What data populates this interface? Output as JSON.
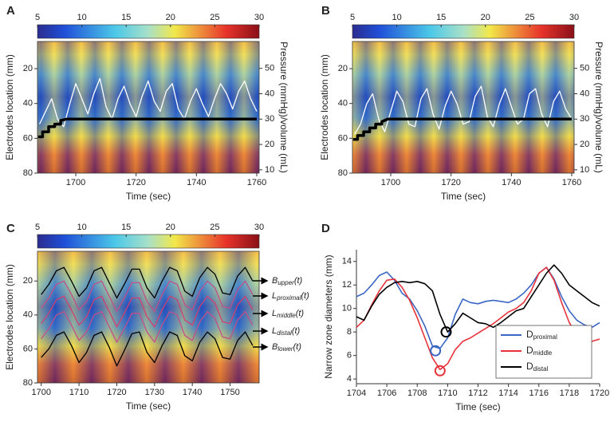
{
  "chart_data": [
    {
      "type": "heatmap",
      "label": "A",
      "colorbar": {
        "clim": [
          5,
          30
        ],
        "ticks": [
          5,
          10,
          15,
          20,
          25,
          30
        ]
      },
      "xlabel": "Time (sec)",
      "ylabel": "Electrodes location (mm)",
      "y2label": "Pressure (mmHg)/volume (mL)",
      "xlim": [
        1687.3,
        1760.8
      ],
      "xticks": [
        1700,
        1720,
        1740,
        1760
      ],
      "ylim": [
        4.4,
        80
      ],
      "invert_y": true,
      "yticks": [
        20,
        40,
        60,
        80
      ],
      "y2lim": [
        8.7,
        60.6
      ],
      "y2ticks": [
        10,
        20,
        30,
        40,
        50
      ],
      "series": [
        {
          "color": "#ffffff",
          "axis": "y2",
          "x": [
            1688,
            1690,
            1692,
            1694,
            1696,
            1698,
            1700,
            1702,
            1704,
            1706,
            1708,
            1710,
            1712,
            1714,
            1716,
            1718,
            1720,
            1722,
            1724,
            1726,
            1728,
            1730,
            1732,
            1734,
            1736,
            1738,
            1740,
            1742,
            1744,
            1746,
            1748,
            1750,
            1752,
            1754,
            1756,
            1758,
            1760
          ],
          "values": [
            28,
            33,
            38,
            30,
            27,
            36,
            44,
            38,
            32,
            40,
            46,
            35,
            30,
            38,
            43,
            36,
            31,
            39,
            45,
            37,
            33,
            41,
            44,
            34,
            30,
            37,
            42,
            36,
            31,
            38,
            44,
            40,
            34,
            41,
            45,
            38,
            33
          ]
        },
        {
          "color": "#000000",
          "axis": "y2",
          "x": [
            1687.5,
            1689,
            1689,
            1691,
            1691,
            1693,
            1693,
            1695,
            1695,
            1697,
            1760
          ],
          "values": [
            23,
            23,
            25,
            25,
            27,
            27,
            28,
            28,
            29.5,
            30,
            30
          ]
        }
      ]
    },
    {
      "type": "heatmap",
      "label": "B",
      "colorbar": {
        "clim": [
          5,
          30
        ],
        "ticks": [
          5,
          10,
          15,
          20,
          25,
          30
        ]
      },
      "xlabel": "Time (sec)",
      "ylabel": "Electrodes location (mm)",
      "y2label": "Pressure (mmHg)/volume (mL)",
      "xlim": [
        1687.3,
        1760.8
      ],
      "xticks": [
        1700,
        1720,
        1740,
        1760
      ],
      "ylim": [
        4.4,
        80
      ],
      "invert_y": true,
      "yticks": [
        20,
        40,
        60,
        80
      ],
      "y2lim": [
        8.7,
        60.6
      ],
      "y2ticks": [
        10,
        20,
        30,
        40,
        50
      ],
      "series": [
        {
          "color": "#ffffff",
          "axis": "y2",
          "x": [
            1688,
            1690,
            1692,
            1694,
            1696,
            1698,
            1700,
            1702,
            1704,
            1706,
            1708,
            1710,
            1712,
            1714,
            1716,
            1718,
            1720,
            1722,
            1724,
            1726,
            1728,
            1730,
            1732,
            1734,
            1736,
            1738,
            1740,
            1742,
            1744,
            1746,
            1748,
            1750,
            1752,
            1754,
            1756,
            1758,
            1760
          ],
          "values": [
            24,
            28,
            36,
            40,
            30,
            25,
            33,
            41,
            37,
            28,
            27,
            38,
            42,
            32,
            26,
            35,
            41,
            36,
            28,
            29,
            39,
            43,
            31,
            27,
            36,
            42,
            35,
            28,
            30,
            40,
            42,
            32,
            27,
            37,
            41,
            34,
            30
          ]
        },
        {
          "color": "#000000",
          "axis": "y2",
          "x": [
            1687.5,
            1689,
            1689,
            1691,
            1691,
            1693,
            1693,
            1695,
            1695,
            1697,
            1697,
            1699,
            1760
          ],
          "values": [
            22,
            22,
            23.5,
            23.5,
            25,
            25,
            26.5,
            26.5,
            28,
            28,
            29,
            30,
            30
          ]
        }
      ]
    },
    {
      "type": "heatmap",
      "label": "C",
      "colorbar": {
        "clim": [
          5,
          30
        ],
        "ticks": [
          5,
          10,
          15,
          20,
          25,
          30
        ]
      },
      "xlabel": "Time (sec)",
      "ylabel": "Electrodes location (mm)",
      "xlim": [
        1699,
        1757.7
      ],
      "xticks": [
        1700,
        1710,
        1720,
        1730,
        1740,
        1750
      ],
      "ylim": [
        2.5,
        80
      ],
      "invert_y": true,
      "yticks": [
        20,
        40,
        60,
        80
      ],
      "x": [
        1700,
        1702,
        1704,
        1706,
        1708,
        1710,
        1712,
        1714,
        1716,
        1718,
        1720,
        1722,
        1724,
        1726,
        1728,
        1730,
        1732,
        1734,
        1736,
        1738,
        1740,
        1742,
        1744,
        1746,
        1748,
        1750,
        1752,
        1754,
        1756
      ],
      "series": [
        {
          "color": "#000000",
          "values": [
            28,
            22,
            14,
            12,
            20,
            29,
            24,
            14,
            12,
            21,
            30,
            22,
            13,
            13,
            24,
            30,
            20,
            12,
            14,
            26,
            29,
            18,
            12,
            16,
            27,
            28,
            17,
            12,
            20
          ]
        },
        {
          "color": "#c0508a",
          "values": [
            36,
            30,
            22,
            20,
            28,
            37,
            32,
            22,
            20,
            29,
            38,
            30,
            21,
            21,
            32,
            38,
            28,
            20,
            22,
            34,
            37,
            26,
            20,
            24,
            35,
            36,
            25,
            20,
            28
          ]
        },
        {
          "color": "#d04070",
          "values": [
            45,
            39,
            31,
            29,
            37,
            46,
            41,
            31,
            29,
            38,
            47,
            39,
            30,
            30,
            41,
            47,
            37,
            29,
            31,
            43,
            46,
            35,
            29,
            33,
            44,
            45,
            34,
            29,
            37
          ]
        },
        {
          "color": "#c0508a",
          "values": [
            54,
            48,
            40,
            38,
            46,
            55,
            50,
            40,
            38,
            47,
            56,
            48,
            39,
            39,
            50,
            56,
            46,
            38,
            40,
            52,
            55,
            44,
            38,
            42,
            53,
            54,
            43,
            38,
            46
          ]
        },
        {
          "color": "#000000",
          "values": [
            65,
            60,
            52,
            50,
            58,
            68,
            62,
            52,
            50,
            59,
            70,
            61,
            51,
            50,
            62,
            68,
            58,
            50,
            52,
            64,
            67,
            56,
            50,
            54,
            65,
            66,
            55,
            50,
            58
          ]
        }
      ],
      "annotations": [
        {
          "base": "B",
          "sub": "upper",
          "tail": "(t)"
        },
        {
          "base": "L",
          "sub": "proximal",
          "tail": "(t)"
        },
        {
          "base": "L",
          "sub": "middle",
          "tail": "(t)"
        },
        {
          "base": "L",
          "sub": "distal",
          "tail": "(t)"
        },
        {
          "base": "B",
          "sub": "lower",
          "tail": "(t)"
        }
      ]
    },
    {
      "type": "line",
      "label": "D",
      "xlabel": "Time (sec)",
      "ylabel": "Narrow zone diameters (mm)",
      "xlim": [
        1704,
        1720
      ],
      "xticks": [
        1704,
        1706,
        1708,
        1710,
        1712,
        1714,
        1716,
        1718,
        1720
      ],
      "ylim": [
        3.6,
        15
      ],
      "yticks": [
        4,
        6,
        8,
        10,
        12,
        14
      ],
      "legend": "lower right",
      "x": [
        1704,
        1704.5,
        1705,
        1705.5,
        1706,
        1706.5,
        1707,
        1707.5,
        1708,
        1708.5,
        1709,
        1709.5,
        1710,
        1710.5,
        1711,
        1711.5,
        1712,
        1712.5,
        1713,
        1713.5,
        1714,
        1714.5,
        1715,
        1715.5,
        1716,
        1716.5,
        1717,
        1717.5,
        1718,
        1718.5,
        1719,
        1719.5,
        1720
      ],
      "series": [
        {
          "name": {
            "base": "D",
            "sub": "proximal"
          },
          "color": "#3a66c4",
          "values": [
            11,
            11.3,
            12,
            12.8,
            13.1,
            12.4,
            11.3,
            10.8,
            9.8,
            8.5,
            6.8,
            6.6,
            7.5,
            9.5,
            10.8,
            10.5,
            10.4,
            10.6,
            10.7,
            10.6,
            10.5,
            10.8,
            11.3,
            12,
            13,
            13.5,
            12.5,
            11,
            9.8,
            9,
            8.6,
            8.4,
            8.8
          ]
        },
        {
          "name": {
            "base": "D",
            "sub": "middle"
          },
          "color": "#e8333a",
          "values": [
            8.4,
            9,
            10.3,
            11.5,
            12.4,
            12.5,
            11.8,
            10.7,
            9.2,
            7.5,
            5.8,
            4.8,
            5.3,
            6.5,
            7.2,
            7.5,
            7.9,
            8.3,
            8.7,
            9.2,
            9.7,
            10,
            10.5,
            11.5,
            13,
            13.5,
            12.4,
            10.5,
            8.8,
            7.8,
            7.5,
            7.2,
            7.4
          ]
        },
        {
          "name": {
            "base": "D",
            "sub": "distal"
          },
          "color": "#000000",
          "values": [
            9.3,
            9,
            10.2,
            11.2,
            11.8,
            12.2,
            12.3,
            12.2,
            12.3,
            12.1,
            11.5,
            9.5,
            8,
            8.7,
            9.6,
            9.2,
            8.8,
            8.7,
            8.4,
            8.8,
            9.3,
            9.8,
            10,
            11,
            12,
            13,
            13.7,
            13,
            12,
            11.5,
            11,
            10.5,
            10.2
          ]
        }
      ],
      "highlights": [
        {
          "x": 1709.2,
          "y": 6.4,
          "color": "#3a66c4"
        },
        {
          "x": 1709.5,
          "y": 4.7,
          "color": "#e8333a"
        },
        {
          "x": 1709.9,
          "y": 8.0,
          "color": "#000000"
        }
      ]
    }
  ]
}
